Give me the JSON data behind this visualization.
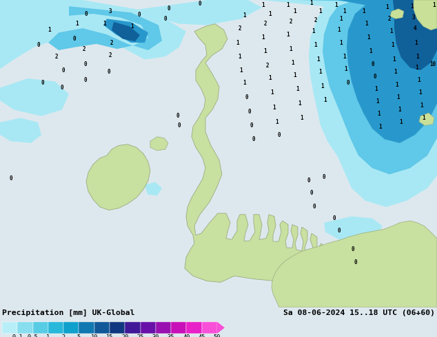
{
  "title_left": "Precipitation [mm] UK-Global",
  "title_right": "Sa 08-06-2024 15..18 UTC (06+60)",
  "colorbar_labels": [
    "0.1",
    "0.5",
    "1",
    "2",
    "5",
    "10",
    "15",
    "20",
    "25",
    "30",
    "35",
    "40",
    "45",
    "50"
  ],
  "colorbar_colors": [
    "#b8eef8",
    "#88ddee",
    "#58cce4",
    "#28b8da",
    "#10a0cc",
    "#1078b0",
    "#105898",
    "#103880",
    "#401898",
    "#6810a8",
    "#9810b0",
    "#c810b8",
    "#e820c8",
    "#f850d8"
  ],
  "arrow_color": "#f850d8",
  "sea_color": "#dde8ee",
  "land_color": "#c8e0a0",
  "land_edge": "#9aac80",
  "precip_light": "#a8e8f4",
  "precip_medium": "#60c8e8",
  "precip_dark": "#2898cc",
  "precip_deep": "#10609a",
  "bar_bg": "#d8d8d8",
  "fig_bg": "#dde8ee",
  "fig_width": 6.34,
  "fig_height": 4.9,
  "dpi": 100
}
